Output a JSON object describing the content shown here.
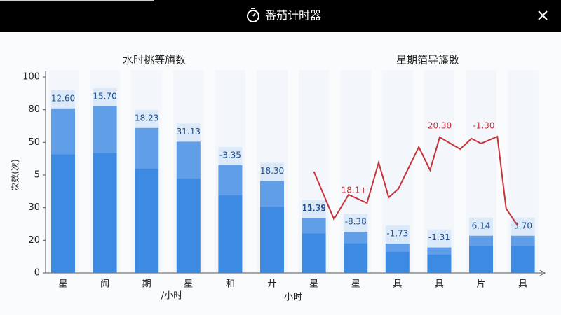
{
  "header": {
    "title": "番茄计时器"
  },
  "chart_data": {
    "type": "bar",
    "titles": [
      "水时挑等旃数",
      "星期箔导旛敓"
    ],
    "y_label": "次数(次)",
    "x_labels": [
      "/小时",
      "小时"
    ],
    "categories": [
      "星",
      "闶",
      "期",
      "星",
      "和",
      "廾",
      "星",
      "星",
      "具",
      "具",
      "片",
      "具"
    ],
    "values": [
      84,
      85,
      74,
      67,
      55,
      47,
      28,
      21,
      15,
      13,
      19,
      19
    ],
    "bar_texts": [
      "12.60",
      "15.70",
      "18.23",
      "31.13",
      "-3.35",
      "18.30",
      "15.39",
      "-8.38",
      "-1.73",
      "-1.31",
      "6.14",
      "3.70"
    ],
    "color": "#3d8ae2",
    "ylim": [
      0,
      100
    ],
    "yticks": [
      0,
      {
        "value": 16.67,
        "label": "20"
      },
      {
        "value": 33.33,
        "label": "30"
      },
      {
        "value": 50,
        "label": "5"
      },
      {
        "value": 66.67,
        "label": "50"
      },
      {
        "value": 83.33,
        "label": "80"
      },
      100
    ],
    "line": {
      "color": "#c8333a",
      "x": [
        6.0,
        6.48,
        6.83,
        7.27,
        7.55,
        7.79,
        8.02,
        8.51,
        8.78,
        9.01,
        9.5,
        9.77,
        10.0,
        10.39,
        10.6,
        10.87
      ],
      "values": [
        51.8,
        27.5,
        40,
        35.7,
        56.4,
        38.6,
        42.9,
        64.3,
        52.5,
        69.3,
        63.2,
        68.6,
        66.1,
        69.6,
        32.9,
        24.3
      ]
    },
    "annotations": [
      "11.75",
      "18.1+",
      "20.30",
      "-1.30"
    ]
  }
}
